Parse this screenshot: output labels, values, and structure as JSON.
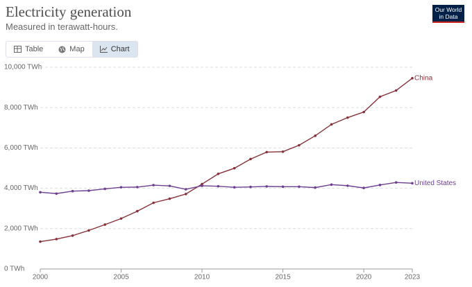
{
  "header": {
    "logo": [
      "Our World",
      "in Data"
    ],
    "tabs": [
      "Table",
      "Map",
      "Chart"
    ]
  },
  "chart_data": {
    "type": "line",
    "title": "Electricity generation",
    "subtitle": "Measured in terawatt-hours.",
    "x": [
      2000,
      2001,
      2002,
      2003,
      2004,
      2005,
      2006,
      2007,
      2008,
      2009,
      2010,
      2011,
      2012,
      2013,
      2014,
      2015,
      2016,
      2017,
      2018,
      2019,
      2020,
      2021,
      2022,
      2023
    ],
    "xlim": [
      2000,
      2023
    ],
    "xticks": [
      2000,
      2005,
      2010,
      2015,
      2020,
      2023
    ],
    "ylim": [
      0,
      10000
    ],
    "yticks": [
      {
        "value": 0,
        "label": "0 TWh"
      },
      {
        "value": 2000,
        "label": "2,000 TWh"
      },
      {
        "value": 4000,
        "label": "4,000 TWh"
      },
      {
        "value": 6000,
        "label": "6,000 TWh"
      },
      {
        "value": 8000,
        "label": "8,000 TWh"
      },
      {
        "value": 10000,
        "label": "10,000 TWh"
      }
    ],
    "grid": true,
    "series": [
      {
        "name": "China",
        "color": "#883039",
        "values": [
          1356,
          1480,
          1654,
          1911,
          2200,
          2500,
          2866,
          3282,
          3482,
          3715,
          4207,
          4715,
          4994,
          5448,
          5794,
          5815,
          6133,
          6604,
          7166,
          7503,
          7779,
          8534,
          8849,
          9456
        ]
      },
      {
        "name": "United States",
        "color": "#6d3e91",
        "values": [
          3802,
          3737,
          3858,
          3883,
          3971,
          4049,
          4059,
          4156,
          4119,
          3950,
          4125,
          4100,
          4048,
          4066,
          4094,
          4078,
          4080,
          4034,
          4180,
          4128,
          4017,
          4164,
          4288,
          4250
        ]
      }
    ]
  }
}
